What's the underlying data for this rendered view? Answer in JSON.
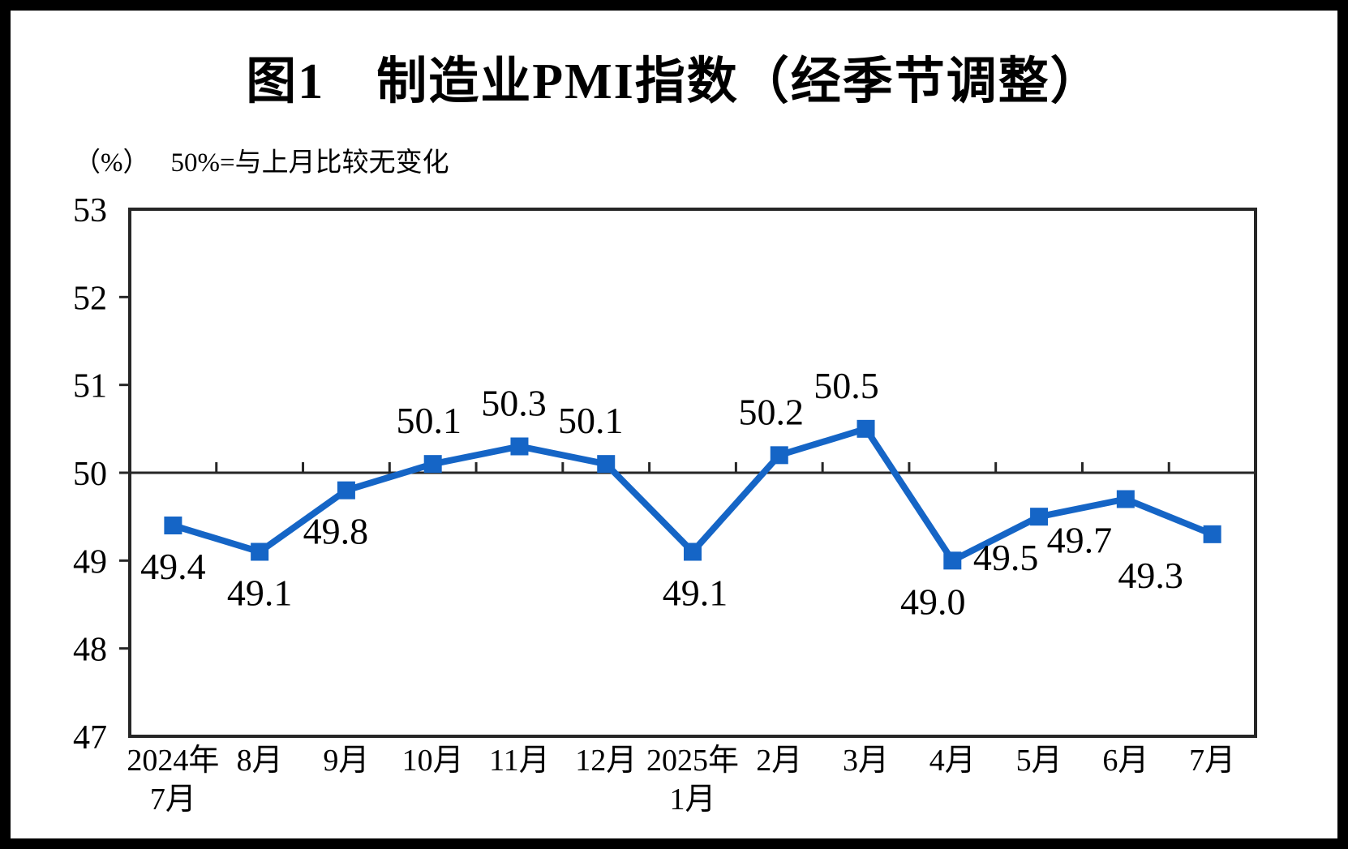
{
  "figure": {
    "title": "图1　制造业PMI指数（经季节调整）",
    "unit_label": "（%）",
    "reference_note": "50%=与上月比较无变化"
  },
  "chart_data": {
    "type": "line",
    "title": "图1 制造业PMI指数（经季节调整）",
    "categories": [
      [
        "2024年",
        "7月"
      ],
      [
        "8月"
      ],
      [
        "9月"
      ],
      [
        "10月"
      ],
      [
        "11月"
      ],
      [
        "12月"
      ],
      [
        "2025年",
        "1月"
      ],
      [
        "2月"
      ],
      [
        "3月"
      ],
      [
        "4月"
      ],
      [
        "5月"
      ],
      [
        "6月"
      ],
      [
        "7月"
      ]
    ],
    "series": [
      {
        "name": "制造业PMI指数（经季节调整）",
        "values": [
          49.4,
          49.1,
          49.8,
          50.1,
          50.3,
          50.1,
          49.1,
          50.2,
          50.5,
          49.0,
          49.5,
          49.7,
          49.3
        ]
      }
    ],
    "data_labels": [
      "49.4",
      "49.1",
      "49.8",
      "50.1",
      "50.3",
      "50.1",
      "49.1",
      "50.2",
      "50.5",
      "49.0",
      "49.5",
      "49.7",
      "49.3"
    ],
    "label_positions": [
      "below",
      "below",
      "below",
      "above",
      "above",
      "above",
      "below",
      "above",
      "above",
      "below",
      "below",
      "below",
      "below"
    ],
    "ylim": [
      47,
      53
    ],
    "yticks": [
      53,
      52,
      51,
      50,
      49,
      48,
      47
    ],
    "ytick_interval": 1,
    "reference_line": 50,
    "grid": false,
    "legend": "none",
    "xlabel": "",
    "ylabel": "（%）",
    "colors": {
      "line": "#1565C6",
      "marker": "#1565C6",
      "axis": "#262626",
      "text": "#000000"
    }
  }
}
